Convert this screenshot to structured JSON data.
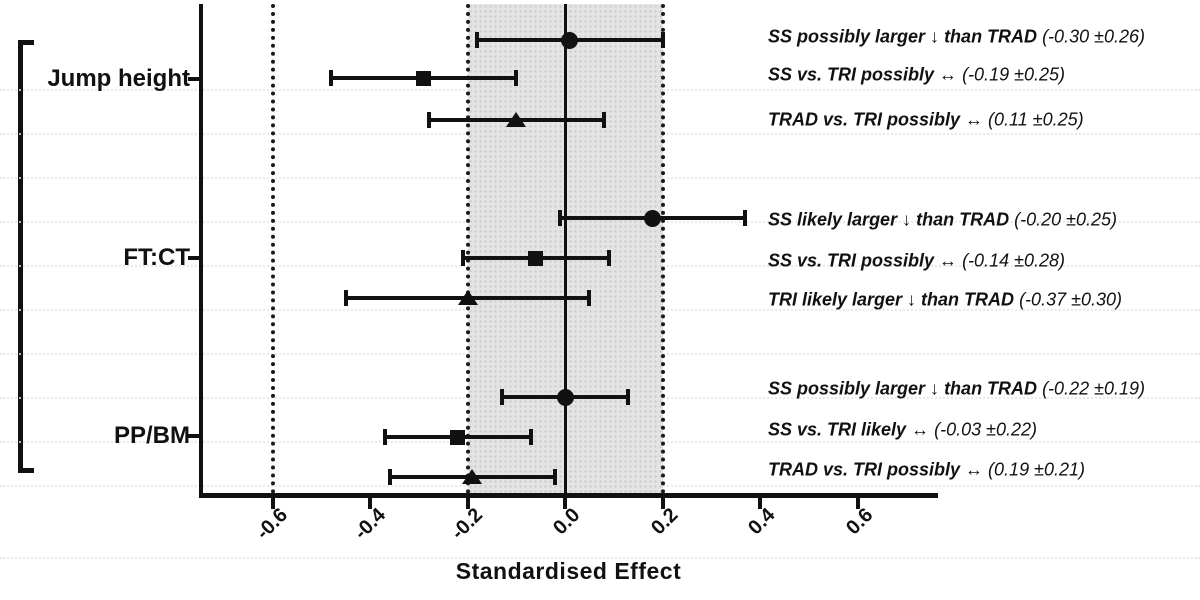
{
  "figure": {
    "background": "#ffffff",
    "ink_color": "#111111",
    "band_color": "#e4e4e4"
  },
  "chart_data": {
    "type": "forest",
    "xlabel": "Standardised Effect",
    "xlim": [
      -0.75,
      0.76
    ],
    "x_ticks": [
      {
        "label": "-0.6",
        "value": -0.6
      },
      {
        "label": "-0.4",
        "value": -0.4
      },
      {
        "label": "-0.2",
        "value": -0.2
      },
      {
        "label": "0.0",
        "value": 0.0
      },
      {
        "label": "0.2",
        "value": 0.2
      },
      {
        "label": "0.4",
        "value": 0.4
      },
      {
        "label": "0.6",
        "value": 0.6
      }
    ],
    "reference_line": 0,
    "shaded_band": [
      -0.2,
      0.2
    ],
    "dotted_vlines": [
      -0.6,
      -0.2,
      0.2
    ],
    "grid": "faint-dotted-horizontal",
    "legend_position": "none",
    "groups": [
      {
        "label": "Jump height",
        "rows": [
          {
            "marker": "circle",
            "value": 0.01,
            "ci": [
              -0.18,
              0.2
            ],
            "annotation": "SS possibly larger ↓ than TRAD",
            "estimate": "(-0.30 ±0.26)"
          },
          {
            "marker": "square",
            "value": -0.29,
            "ci": [
              -0.48,
              -0.1
            ],
            "annotation": "SS vs. TRI possibly ↔",
            "estimate": "(-0.19 ±0.25)"
          },
          {
            "marker": "triangle",
            "value": -0.1,
            "ci": [
              -0.28,
              0.08
            ],
            "annotation": "TRAD vs. TRI possibly ↔",
            "estimate": "(0.11 ±0.25)"
          }
        ]
      },
      {
        "label": "FT:CT",
        "rows": [
          {
            "marker": "circle",
            "value": 0.18,
            "ci": [
              -0.01,
              0.37
            ],
            "annotation": "SS likely larger ↓ than TRAD",
            "estimate": "(-0.20 ±0.25)"
          },
          {
            "marker": "square",
            "value": -0.06,
            "ci": [
              -0.21,
              0.09
            ],
            "annotation": "SS vs. TRI possibly ↔",
            "estimate": "(-0.14 ±0.28)"
          },
          {
            "marker": "triangle",
            "value": -0.2,
            "ci": [
              -0.45,
              0.05
            ],
            "annotation": "TRI likely larger ↓ than TRAD",
            "estimate": "(-0.37 ±0.30)"
          }
        ]
      },
      {
        "label": "PP/BM",
        "rows": [
          {
            "marker": "circle",
            "value": 0.0,
            "ci": [
              -0.13,
              0.13
            ],
            "annotation": "SS possibly larger ↓ than TRAD",
            "estimate": "(-0.22 ±0.19)"
          },
          {
            "marker": "square",
            "value": -0.22,
            "ci": [
              -0.37,
              -0.07
            ],
            "annotation": "SS vs. TRI likely ↔",
            "estimate": "(-0.03 ±0.22)"
          },
          {
            "marker": "triangle",
            "value": -0.19,
            "ci": [
              -0.36,
              -0.02
            ],
            "annotation": "TRAD vs. TRI possibly ↔",
            "estimate": "(0.19 ±0.21)"
          }
        ]
      }
    ]
  }
}
